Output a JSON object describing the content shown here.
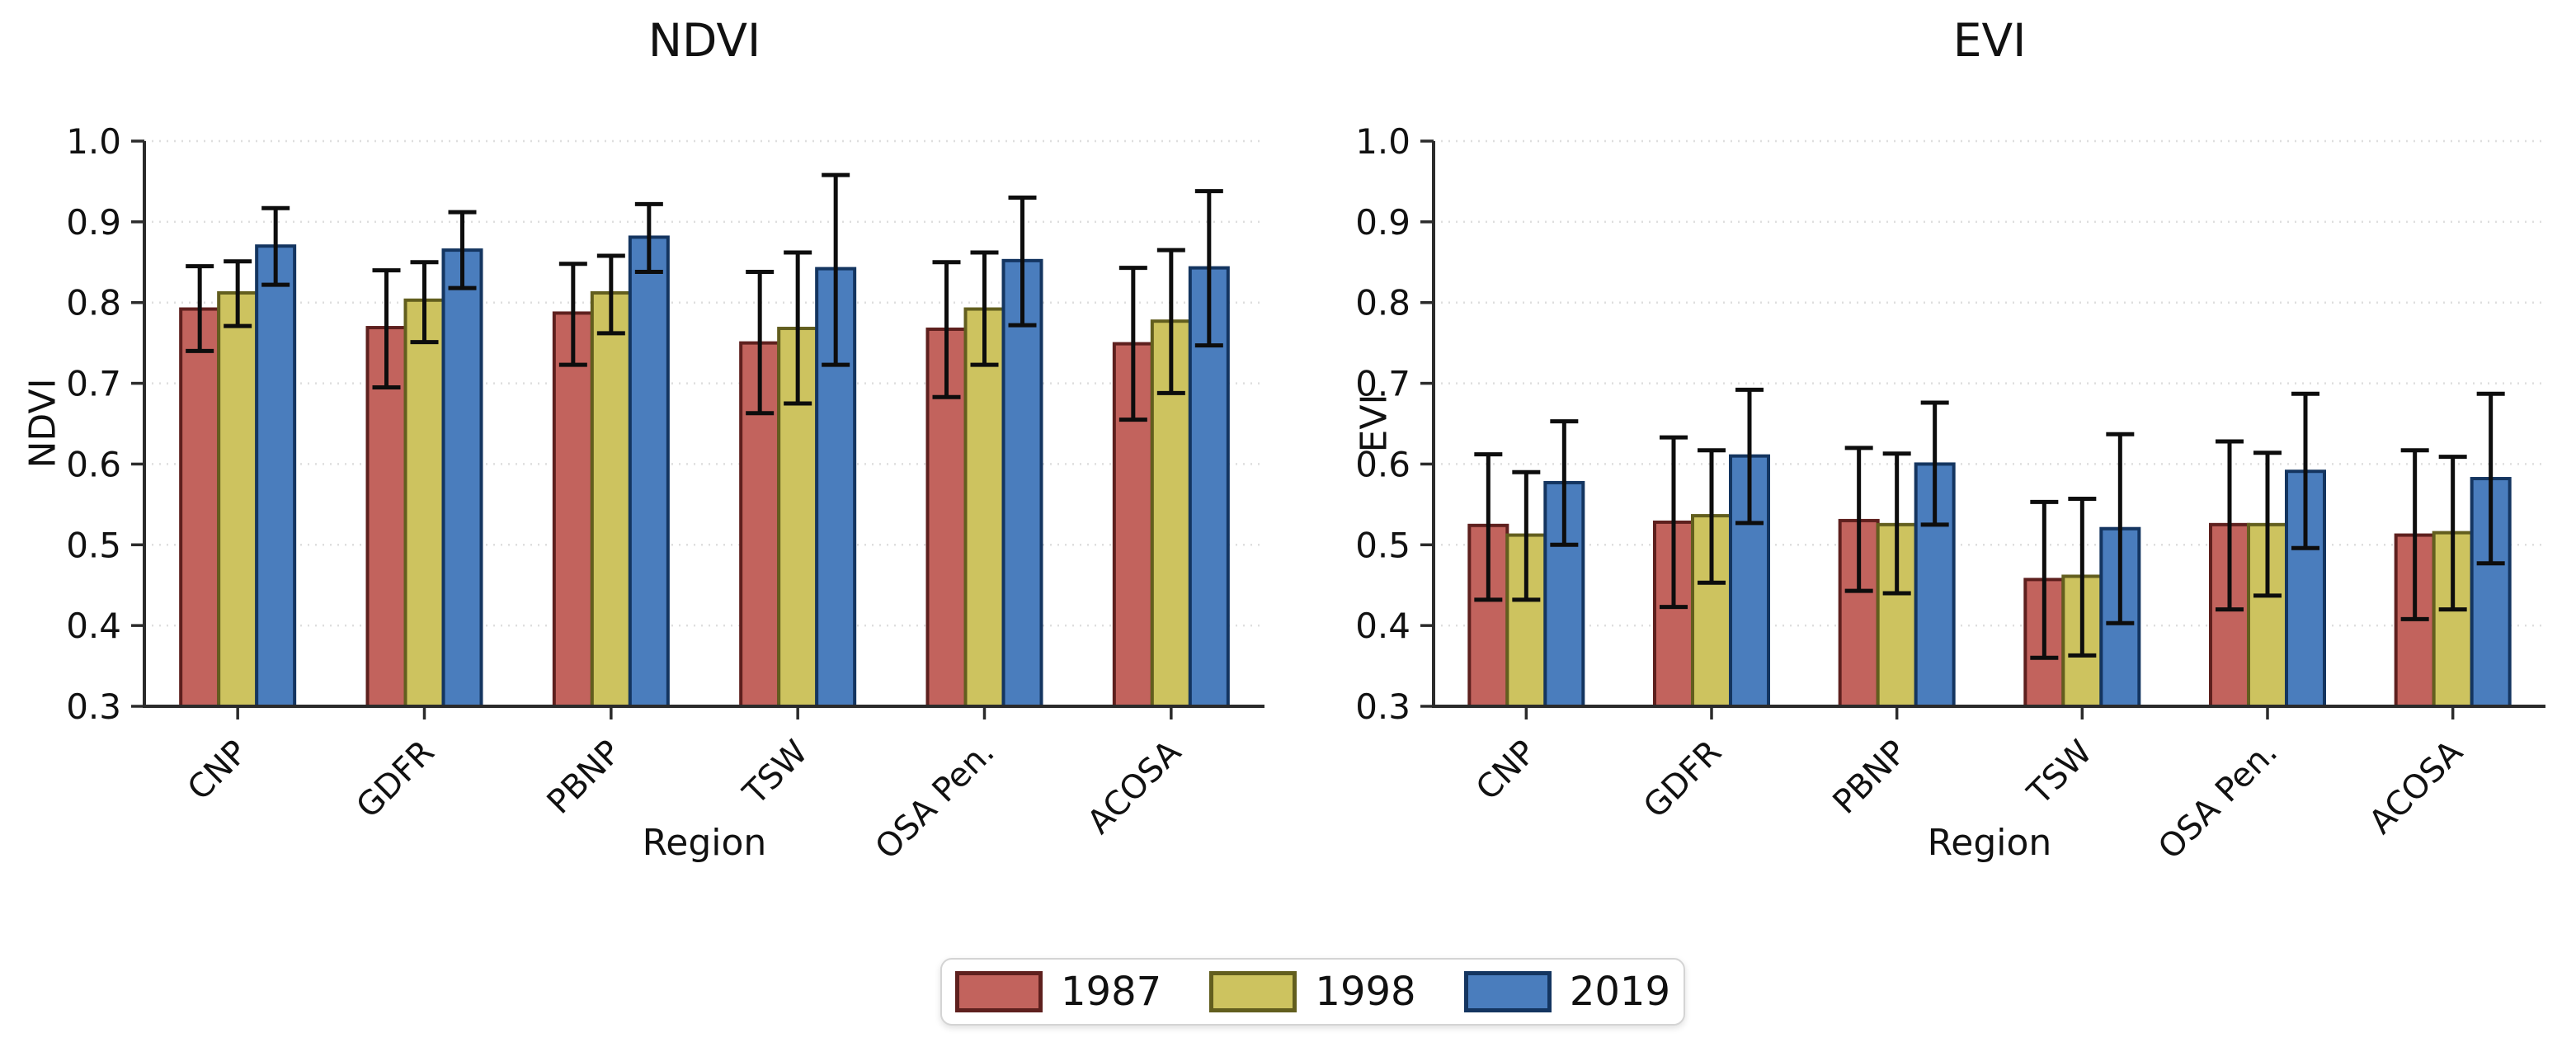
{
  "figure": {
    "background": "#ffffff",
    "text_color": "#111111",
    "legend": {
      "position": "bottom center",
      "items": [
        {
          "label": "1987",
          "fill": "#c2635d",
          "edge": "#5e201e"
        },
        {
          "label": "1998",
          "fill": "#cdc35f",
          "edge": "#625e1e"
        },
        {
          "label": "2019",
          "fill": "#4a7dbd",
          "edge": "#143560"
        }
      ]
    }
  },
  "chart_data": [
    {
      "type": "bar",
      "title": "NDVI",
      "xlabel": "Region",
      "ylabel": "NDVI",
      "categories": [
        "CNP",
        "GDFR",
        "PBNP",
        "TSW",
        "OSA Pen.",
        "ACOSA"
      ],
      "ylim": [
        0.3,
        1.0
      ],
      "yticks": [
        "1.0",
        "0.9",
        "0.8",
        "0.7",
        "0.6",
        "0.5",
        "0.4",
        "0.3"
      ],
      "grid": "horizontal dotted",
      "error_bars": true,
      "series": [
        {
          "name": "1987",
          "fill": "#c2635d",
          "edge": "#5e201e",
          "values": [
            0.792,
            0.769,
            0.787,
            0.75,
            0.767,
            0.749
          ],
          "err_low": [
            0.74,
            0.695,
            0.723,
            0.663,
            0.683,
            0.655
          ],
          "err_high": [
            0.845,
            0.84,
            0.848,
            0.838,
            0.85,
            0.843
          ]
        },
        {
          "name": "1998",
          "fill": "#cdc35f",
          "edge": "#625e1e",
          "values": [
            0.812,
            0.803,
            0.812,
            0.768,
            0.792,
            0.777
          ],
          "err_low": [
            0.771,
            0.751,
            0.762,
            0.675,
            0.723,
            0.688
          ],
          "err_high": [
            0.851,
            0.85,
            0.858,
            0.862,
            0.862,
            0.865
          ]
        },
        {
          "name": "2019",
          "fill": "#4a7dbd",
          "edge": "#143560",
          "values": [
            0.87,
            0.865,
            0.881,
            0.842,
            0.852,
            0.843
          ],
          "err_low": [
            0.822,
            0.818,
            0.838,
            0.723,
            0.772,
            0.747
          ],
          "err_high": [
            0.917,
            0.912,
            0.922,
            0.958,
            0.93,
            0.938
          ]
        }
      ]
    },
    {
      "type": "bar",
      "title": "EVI",
      "xlabel": "Region",
      "ylabel": "EVI",
      "categories": [
        "CNP",
        "GDFR",
        "PBNP",
        "TSW",
        "OSA Pen.",
        "ACOSA"
      ],
      "ylim": [
        0.3,
        1.0
      ],
      "yticks": [
        "1.0",
        "0.9",
        "0.8",
        "0.7",
        "0.6",
        "0.5",
        "0.4",
        "0.3"
      ],
      "grid": "horizontal dotted",
      "error_bars": true,
      "series": [
        {
          "name": "1987",
          "fill": "#c2635d",
          "edge": "#5e201e",
          "values": [
            0.524,
            0.528,
            0.53,
            0.457,
            0.525,
            0.512
          ],
          "err_low": [
            0.432,
            0.423,
            0.443,
            0.36,
            0.42,
            0.408
          ],
          "err_high": [
            0.612,
            0.633,
            0.62,
            0.553,
            0.628,
            0.617
          ]
        },
        {
          "name": "1998",
          "fill": "#cdc35f",
          "edge": "#625e1e",
          "values": [
            0.512,
            0.536,
            0.525,
            0.461,
            0.525,
            0.515
          ],
          "err_low": [
            0.432,
            0.453,
            0.44,
            0.363,
            0.437,
            0.42
          ],
          "err_high": [
            0.59,
            0.617,
            0.613,
            0.557,
            0.614,
            0.609
          ]
        },
        {
          "name": "2019",
          "fill": "#4a7dbd",
          "edge": "#143560",
          "values": [
            0.577,
            0.61,
            0.6,
            0.52,
            0.591,
            0.582
          ],
          "err_low": [
            0.5,
            0.527,
            0.525,
            0.403,
            0.496,
            0.477
          ],
          "err_high": [
            0.653,
            0.692,
            0.676,
            0.637,
            0.687,
            0.687
          ]
        }
      ]
    }
  ]
}
